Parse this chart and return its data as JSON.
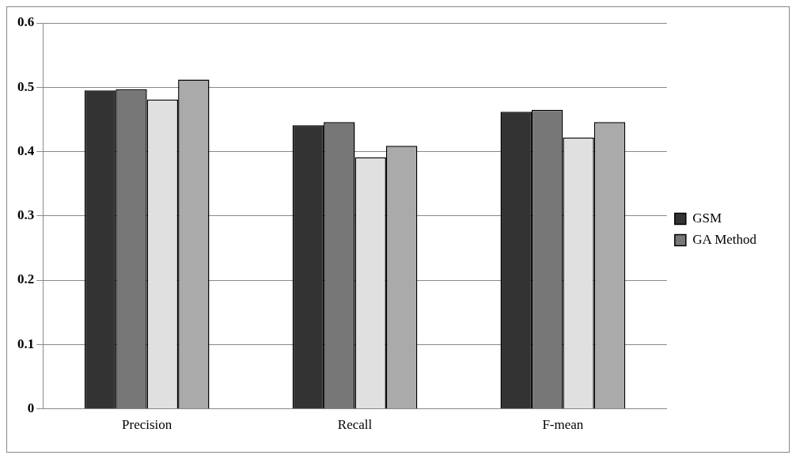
{
  "chart_data": {
    "type": "bar",
    "categories": [
      "Precision",
      "Recall",
      "F-mean"
    ],
    "series": [
      {
        "name": "GSM",
        "color": "#333333",
        "values": [
          0.495,
          0.441,
          0.462
        ]
      },
      {
        "name": "GA Method",
        "color": "#777777",
        "values": [
          0.497,
          0.446,
          0.465
        ]
      },
      {
        "color": "#e0e0e0",
        "values": [
          0.481,
          0.391,
          0.422
        ]
      },
      {
        "color": "#aaaaaa",
        "values": [
          0.512,
          0.409,
          0.446
        ]
      }
    ],
    "ylim": [
      0,
      0.6
    ],
    "yticks": [
      0,
      0.1,
      0.2,
      0.3,
      0.4,
      0.5,
      0.6
    ],
    "grid": "y",
    "legend": "right"
  }
}
